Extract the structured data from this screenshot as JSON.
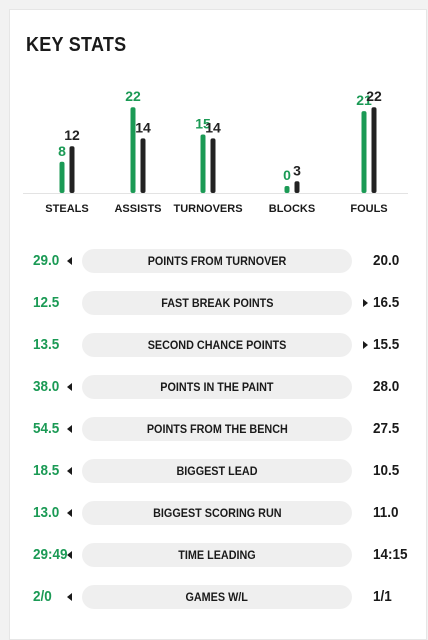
{
  "title": "KEY STATS",
  "colors": {
    "team1": "#1b9a55",
    "team2": "#222222",
    "text": "#1a1a1a",
    "pill": "#efefef"
  },
  "chart_data": {
    "type": "bar",
    "categories": [
      "STEALS",
      "ASSISTS",
      "TURNOVERS",
      "BLOCKS",
      "FOULS"
    ],
    "series": [
      {
        "values": [
          8,
          22,
          15,
          0,
          21
        ]
      },
      {
        "values": [
          12,
          14,
          14,
          3,
          22
        ]
      }
    ]
  },
  "rows": [
    {
      "label": "POINTS FROM TURNOVER",
      "left": "29.0",
      "right": "20.0",
      "leader": "left"
    },
    {
      "label": "FAST BREAK POINTS",
      "left": "12.5",
      "right": "16.5",
      "leader": "right"
    },
    {
      "label": "SECOND CHANCE POINTS",
      "left": "13.5",
      "right": "15.5",
      "leader": "right"
    },
    {
      "label": "POINTS IN THE PAINT",
      "left": "38.0",
      "right": "28.0",
      "leader": "left"
    },
    {
      "label": "POINTS FROM THE BENCH",
      "left": "54.5",
      "right": "27.5",
      "leader": "left"
    },
    {
      "label": "BIGGEST LEAD",
      "left": "18.5",
      "right": "10.5",
      "leader": "left"
    },
    {
      "label": "BIGGEST SCORING RUN",
      "left": "13.0",
      "right": "11.0",
      "leader": "left"
    },
    {
      "label": "TIME LEADING",
      "left": "29:49",
      "right": "14:15",
      "leader": "left"
    },
    {
      "label": "GAMES W/L",
      "left": "2/0",
      "right": "1/1",
      "leader": "left"
    }
  ]
}
